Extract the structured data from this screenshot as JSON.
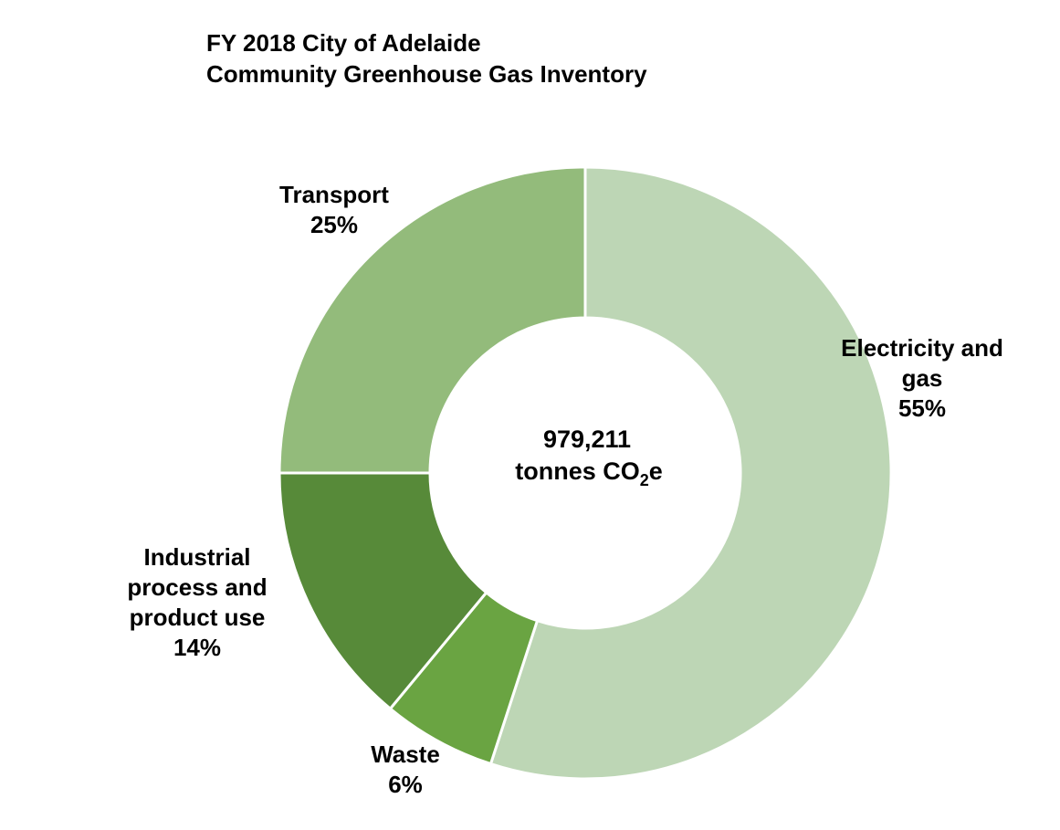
{
  "chart_data": {
    "type": "pie",
    "variant": "donut",
    "title_lines": [
      "FY 2018 City of Adelaide",
      "Community Greenhouse Gas Inventory"
    ],
    "center_label": {
      "value": "979,211",
      "unit_prefix": "tonnes CO",
      "unit_subscript": "2",
      "unit_suffix": "e"
    },
    "slices": [
      {
        "name": "Electricity and gas",
        "label_lines": [
          "Electricity and",
          "gas"
        ],
        "value": 55,
        "value_label": "55%",
        "color": "#bdd6b5"
      },
      {
        "name": "Waste",
        "label_lines": [
          "Waste"
        ],
        "value": 6,
        "value_label": "6%",
        "color": "#6aa442"
      },
      {
        "name": "Industrial process and product use",
        "label_lines": [
          "Industrial",
          "process and",
          "product use"
        ],
        "value": 14,
        "value_label": "14%",
        "color": "#578a39"
      },
      {
        "name": "Transport",
        "label_lines": [
          "Transport"
        ],
        "value": 25,
        "value_label": "25%",
        "color": "#93bb7b"
      }
    ],
    "start_angle_deg": 0,
    "direction": "clockwise",
    "legend": "none"
  }
}
